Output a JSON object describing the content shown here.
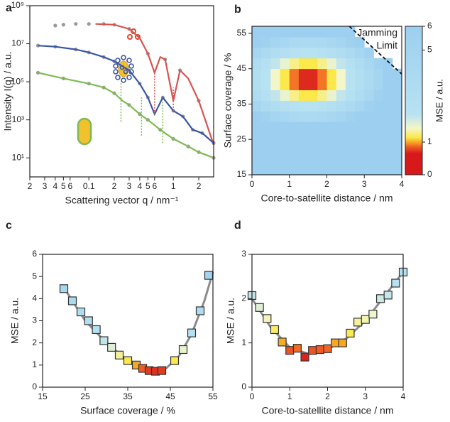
{
  "chart_data": [
    {
      "type": "line",
      "panel": "a",
      "xlabel": "Scattering vector q / nm⁻¹",
      "ylabel": "Intensity I(q) / a.u.",
      "xscale": "log",
      "yscale": "log",
      "xlim": [
        0.02,
        3
      ],
      "ylim": [
        1,
        1000000000
      ],
      "xticks": [
        {
          "value": 0.02,
          "label": "2"
        },
        {
          "value": 0.03,
          "label": "3"
        },
        {
          "value": 0.04,
          "label": "4"
        },
        {
          "value": 0.05,
          "label": "5"
        },
        {
          "value": 0.06,
          "label": "6"
        },
        0.1,
        {
          "value": 0.2,
          "label": "2"
        },
        {
          "value": 0.3,
          "label": "3"
        },
        {
          "value": 0.4,
          "label": "4"
        },
        {
          "value": 0.5,
          "label": "5"
        },
        {
          "value": 0.6,
          "label": "6"
        },
        1,
        {
          "value": 2,
          "label": "2"
        }
      ],
      "yticks": [
        {
          "value": 10,
          "label": "10¹"
        },
        {
          "value": 1000,
          "label": "10³"
        },
        {
          "value": 100000,
          "label": "10⁵"
        },
        {
          "value": 10000000,
          "label": "10⁷"
        },
        {
          "value": 1000000000,
          "label": "10⁹"
        }
      ],
      "series": [
        {
          "style": "markers",
          "color": "#9a9a9a",
          "x": [
            0.04,
            0.05,
            0.07,
            0.1,
            0.15,
            0.2,
            0.3,
            0.5,
            0.8,
            1.2,
            2.0,
            3.0
          ],
          "values": [
            90000000,
            100000000,
            110000000,
            110000000,
            110000000,
            100000000,
            60000000,
            3000000,
            1500000,
            400000,
            10000,
            60
          ]
        },
        {
          "style": "markers",
          "color": "#9a9a9a",
          "x": [
            0.025,
            0.04,
            0.07,
            0.1,
            0.15,
            0.2,
            0.3,
            0.4,
            0.5,
            0.75,
            1.0,
            1.3,
            1.7,
            2.2,
            3.0
          ],
          "values": [
            8000000,
            7000000,
            5000000,
            3500000,
            2000000,
            1200000,
            400000,
            80000,
            15000,
            15000,
            3000,
            1500,
            300,
            200,
            60
          ]
        },
        {
          "style": "markers",
          "color": "#9a9a9a",
          "x": [
            0.025,
            0.05,
            0.1,
            0.15,
            0.2,
            0.3,
            0.4,
            0.5,
            0.7,
            1.0,
            1.5,
            2.0,
            3.0
          ],
          "values": [
            300000,
            150000,
            80000,
            50000,
            25000,
            6000,
            2000,
            1000,
            300,
            100,
            40,
            20,
            10
          ]
        },
        {
          "style": "line",
          "color": "#d9534f",
          "x": [
            0.12,
            0.2,
            0.3,
            0.4,
            0.5,
            0.6,
            0.7,
            0.8,
            1.0,
            1.2,
            1.5,
            2.0,
            3.0
          ],
          "values": [
            110000000,
            100000000,
            60000000,
            20000000,
            3000000,
            300000,
            2000000,
            1500000,
            10000,
            400000,
            150000,
            10000,
            50
          ]
        },
        {
          "style": "line",
          "color": "#3a56a5",
          "x": [
            0.025,
            0.04,
            0.07,
            0.1,
            0.15,
            0.2,
            0.3,
            0.4,
            0.5,
            0.6,
            0.75,
            1.0,
            1.3,
            1.7,
            2.2,
            3.0
          ],
          "values": [
            8000000,
            7000000,
            5000000,
            3500000,
            2000000,
            1200000,
            400000,
            80000,
            15000,
            2000,
            15000,
            3000,
            1500,
            300,
            200,
            60
          ]
        },
        {
          "style": "line",
          "color": "#7dbb52",
          "x": [
            0.025,
            0.05,
            0.1,
            0.15,
            0.2,
            0.25,
            0.3,
            0.4,
            0.5,
            0.7,
            1.0,
            1.5,
            2.0,
            3.0
          ],
          "values": [
            300000,
            150000,
            80000,
            50000,
            25000,
            10000,
            6000,
            2000,
            1000,
            300,
            100,
            40,
            20,
            10
          ]
        }
      ],
      "guides": [
        {
          "color": "#d9534f",
          "x": 0.6,
          "y": [
            2000,
            300000
          ]
        },
        {
          "color": "#d9534f",
          "x": 1.0,
          "y": [
            3000,
            50000
          ]
        },
        {
          "color": "#7dbb52",
          "x": 0.24,
          "y": [
            800,
            100000
          ]
        },
        {
          "color": "#7dbb52",
          "x": 0.42,
          "y": [
            150,
            15000
          ]
        },
        {
          "color": "#7dbb52",
          "x": 0.75,
          "y": [
            60,
            15000
          ]
        }
      ]
    },
    {
      "type": "heatmap",
      "panel": "b",
      "xlabel": "Core-to-satellite distance / nm",
      "ylabel": "Surface coverage / %",
      "xlim": [
        0,
        4
      ],
      "ylim": [
        15,
        57
      ],
      "xticks": [
        0,
        1,
        2,
        3,
        4
      ],
      "yticks": [
        15,
        25,
        35,
        45,
        55
      ],
      "x_edges": [
        0,
        0.25,
        0.5,
        0.75,
        1,
        1.25,
        1.5,
        1.75,
        2,
        2.25,
        2.5,
        2.75,
        3,
        3.25,
        3.5,
        3.75,
        4
      ],
      "y_edges": [
        15,
        18,
        21,
        24,
        27,
        30,
        33,
        36,
        39,
        42,
        45,
        48,
        51,
        54,
        57
      ],
      "z": [
        [
          22.4,
          21.6,
          21.0,
          20.6,
          20.3,
          20.1,
          20.1,
          20.3,
          20.6,
          21.0,
          21.6,
          22.4,
          23.3,
          24.3,
          25.5,
          26.9
        ],
        [
          18.1,
          17.3,
          16.7,
          16.3,
          16.0,
          15.8,
          15.8,
          16.0,
          16.3,
          16.7,
          17.3,
          18.1,
          19.0,
          20.0,
          21.2,
          22.6
        ],
        [
          14.3,
          13.5,
          12.9,
          12.5,
          12.2,
          12.0,
          12.0,
          12.2,
          12.5,
          12.9,
          13.5,
          14.3,
          15.2,
          16.2,
          17.4,
          18.8
        ],
        [
          11.1,
          10.3,
          9.7,
          9.3,
          9.0,
          8.8,
          8.8,
          9.0,
          9.3,
          9.7,
          10.3,
          11.1,
          12.0,
          13.0,
          14.2,
          15.6
        ],
        [
          8.4,
          7.6,
          7.0,
          6.6,
          6.3,
          6.1,
          6.1,
          6.3,
          6.6,
          7.0,
          7.6,
          8.4,
          9.3,
          10.3,
          11.5,
          12.9
        ],
        [
          6.2,
          5.4,
          4.8,
          4.4,
          4.1,
          3.9,
          3.9,
          4.1,
          4.4,
          4.8,
          5.4,
          6.2,
          7.1,
          8.1,
          9.3,
          10.7
        ],
        [
          4.6,
          3.8,
          3.2,
          2.8,
          2.5,
          2.3,
          2.3,
          2.5,
          2.8,
          3.2,
          3.8,
          4.6,
          5.5,
          6.5,
          7.7,
          9.1
        ],
        [
          3.5,
          2.7,
          2.1,
          1.7,
          1.4,
          1.2,
          1.2,
          1.4,
          1.7,
          2.1,
          2.7,
          3.5,
          4.4,
          5.4,
          6.6,
          8.0
        ],
        [
          3.0,
          2.2,
          1.6,
          1.2,
          0.9,
          0.7,
          0.7,
          0.9,
          1.2,
          1.6,
          2.2,
          3.0,
          3.9,
          4.9,
          6.1,
          7.5
        ],
        [
          3.0,
          2.2,
          1.6,
          1.2,
          0.9,
          0.7,
          0.7,
          0.9,
          1.2,
          1.6,
          2.2,
          3.0,
          3.9,
          4.9,
          6.1,
          7.5
        ],
        [
          3.5,
          2.7,
          2.1,
          1.7,
          1.4,
          1.2,
          1.2,
          1.4,
          1.7,
          2.1,
          2.7,
          3.5,
          4.4,
          5.4,
          6.6,
          null
        ],
        [
          4.6,
          3.8,
          3.2,
          2.8,
          2.5,
          2.3,
          2.3,
          2.5,
          2.8,
          3.2,
          3.8,
          4.6,
          5.5,
          null,
          null,
          null
        ],
        [
          6.2,
          5.4,
          4.8,
          4.4,
          4.1,
          3.9,
          3.9,
          4.1,
          4.4,
          4.8,
          5.4,
          6.2,
          null,
          null,
          null,
          null
        ],
        [
          8.4,
          7.6,
          7.0,
          6.6,
          6.3,
          6.1,
          6.1,
          6.3,
          6.6,
          7.0,
          7.6,
          null,
          null,
          null,
          null,
          null
        ]
      ],
      "colormap": [
        {
          "value": 0.65,
          "color": "#d7191c"
        },
        {
          "value": 0.85,
          "color": "#ef5a24"
        },
        {
          "value": 1.0,
          "color": "#f7a823"
        },
        {
          "value": 1.2,
          "color": "#fbe84a"
        },
        {
          "value": 1.6,
          "color": "#f3f6c8"
        },
        {
          "value": 2.2,
          "color": "#b8e2f2"
        },
        {
          "value": 6,
          "color": "#9ccff0"
        }
      ],
      "colorbar": {
        "label": "MSE / a.u.",
        "ticks": [
          0,
          1,
          5,
          6
        ]
      },
      "annotation": [
        "Jamming",
        "Limit"
      ],
      "jamming_line": {
        "x": [
          2.6,
          4
        ],
        "y": [
          57,
          43.5
        ]
      }
    },
    {
      "type": "scatter",
      "panel": "c",
      "xlabel": "Surface coverage / %",
      "ylabel": "MSE / a.u.",
      "xlim": [
        15,
        55
      ],
      "ylim": [
        0,
        6
      ],
      "xticks": [
        15,
        25,
        35,
        45,
        55
      ],
      "yticks": [
        0,
        1,
        2,
        3,
        4,
        5,
        6
      ],
      "x": [
        20,
        22,
        24,
        25.8,
        27.6,
        29.4,
        31.2,
        33,
        35,
        37,
        38.5,
        40,
        41.5,
        43,
        46,
        48,
        50,
        52,
        54
      ],
      "values": [
        4.45,
        3.9,
        3.4,
        3.0,
        2.6,
        2.1,
        1.8,
        1.45,
        1.2,
        1.0,
        0.85,
        0.75,
        0.72,
        0.75,
        1.2,
        1.7,
        2.45,
        3.45,
        5.05
      ],
      "fit": {
        "color": "#8c8c8c",
        "x": [
          20,
          25,
          30,
          35,
          38,
          41,
          44,
          47,
          50,
          53,
          55
        ],
        "values": [
          4.5,
          3.0,
          2.0,
          1.2,
          0.85,
          0.72,
          0.85,
          1.4,
          2.4,
          3.9,
          5.2
        ]
      }
    },
    {
      "type": "scatter",
      "panel": "d",
      "xlabel": "Core-to-satellite distance / nm",
      "ylabel": "MSE / a.u.",
      "xlim": [
        0,
        4
      ],
      "ylim": [
        0,
        3
      ],
      "xticks": [
        0,
        1,
        2,
        3,
        4
      ],
      "yticks": [
        0,
        1,
        2,
        3
      ],
      "x": [
        0,
        0.2,
        0.4,
        0.6,
        0.8,
        1.0,
        1.2,
        1.4,
        1.6,
        1.8,
        2.0,
        2.2,
        2.4,
        2.6,
        2.8,
        3.0,
        3.2,
        3.4,
        3.6,
        3.8,
        4.0
      ],
      "values": [
        2.07,
        1.8,
        1.55,
        1.3,
        1.02,
        0.83,
        0.88,
        0.68,
        0.83,
        0.85,
        0.87,
        1.0,
        1.0,
        1.22,
        1.47,
        1.53,
        1.65,
        2.0,
        2.08,
        2.35,
        2.6
      ],
      "fit": {
        "color": "#8c8c8c",
        "x": [
          0,
          0.5,
          1,
          1.5,
          2,
          2.5,
          3,
          3.5,
          4
        ],
        "values": [
          2.0,
          1.35,
          0.9,
          0.75,
          0.85,
          1.1,
          1.5,
          2.05,
          2.6
        ]
      }
    }
  ]
}
